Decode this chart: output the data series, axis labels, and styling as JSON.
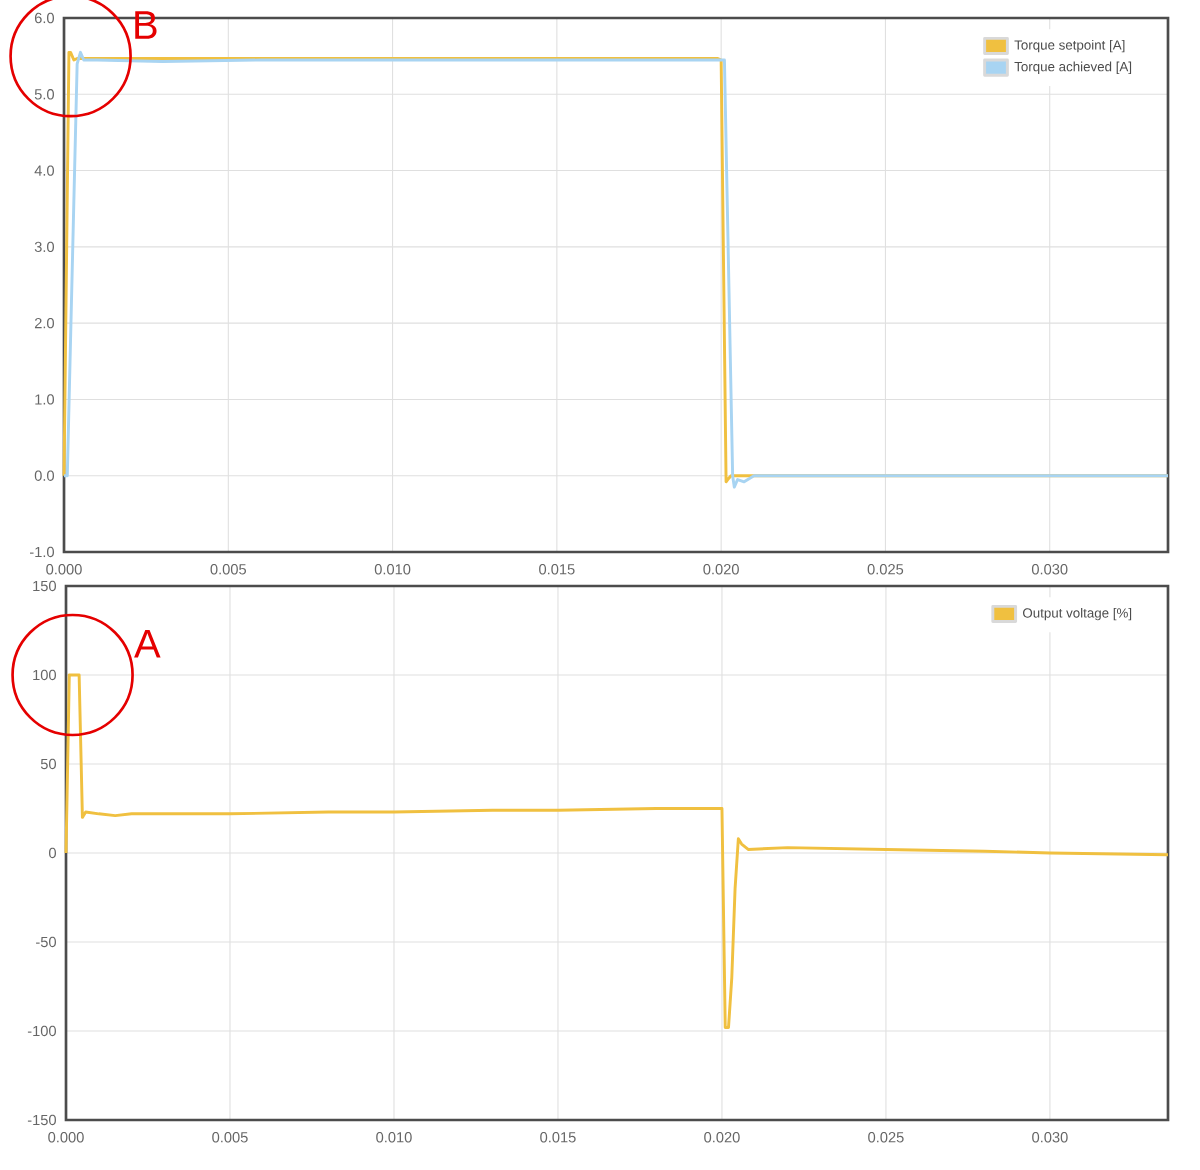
{
  "chart_data": [
    {
      "type": "line",
      "xlim": [
        0,
        0.0336
      ],
      "ylim": [
        -1,
        6
      ],
      "xticks": [
        {
          "value": 0,
          "label": "0.000"
        },
        {
          "value": 0.005,
          "label": "0.005"
        },
        {
          "value": 0.01,
          "label": "0.010"
        },
        {
          "value": 0.015,
          "label": "0.015"
        },
        {
          "value": 0.02,
          "label": "0.020"
        },
        {
          "value": 0.025,
          "label": "0.025"
        },
        {
          "value": 0.03,
          "label": "0.030"
        }
      ],
      "yticks": [
        {
          "value": -1,
          "label": "-1.0"
        },
        {
          "value": 0,
          "label": "0.0"
        },
        {
          "value": 1,
          "label": "1.0"
        },
        {
          "value": 2,
          "label": "2.0"
        },
        {
          "value": 3,
          "label": "3.0"
        },
        {
          "value": 4,
          "label": "4.0"
        },
        {
          "value": 5,
          "label": "5.0"
        },
        {
          "value": 6,
          "label": "6.0"
        }
      ],
      "grid": true,
      "legend": "top right",
      "marker": "none",
      "line_style": "solid",
      "annotations": [
        {
          "text": "B",
          "x": 0.0002,
          "y": 5.5
        }
      ],
      "series": [
        {
          "name": "Torque setpoint [A]",
          "color": "#f0c040",
          "x": [
            0,
            0.00015,
            0.0002,
            0.0003,
            0.0004,
            0.002,
            0.005,
            0.01,
            0.015,
            0.0199,
            0.02,
            0.02015,
            0.0202,
            0.0203,
            0.0336
          ],
          "values": [
            0,
            5.55,
            5.55,
            5.45,
            5.47,
            5.47,
            5.47,
            5.47,
            5.47,
            5.47,
            5.45,
            -0.08,
            -0.05,
            0,
            0
          ]
        },
        {
          "name": "Torque achieved [A]",
          "color": "#a8d4f2",
          "x": [
            0,
            0.0001,
            0.0004,
            0.0005,
            0.0006,
            0.001,
            0.003,
            0.006,
            0.01,
            0.015,
            0.0201,
            0.02035,
            0.0204,
            0.0205,
            0.0207,
            0.021,
            0.0336
          ],
          "values": [
            0,
            0,
            5.4,
            5.55,
            5.45,
            5.45,
            5.43,
            5.45,
            5.45,
            5.45,
            5.45,
            0,
            -0.15,
            -0.05,
            -0.08,
            0,
            0
          ]
        }
      ]
    },
    {
      "type": "line",
      "xlim": [
        0,
        0.0336
      ],
      "ylim": [
        -150,
        150
      ],
      "xticks": [
        {
          "value": 0,
          "label": "0.000"
        },
        {
          "value": 0.005,
          "label": "0.005"
        },
        {
          "value": 0.01,
          "label": "0.010"
        },
        {
          "value": 0.015,
          "label": "0.015"
        },
        {
          "value": 0.02,
          "label": "0.020"
        },
        {
          "value": 0.025,
          "label": "0.025"
        },
        {
          "value": 0.03,
          "label": "0.030"
        }
      ],
      "yticks": [
        -150,
        -100,
        -50,
        0,
        50,
        100,
        150
      ],
      "grid": true,
      "legend": "top right",
      "marker": "none",
      "line_style": "solid",
      "annotations": [
        {
          "text": "A",
          "x": 0.0002,
          "y": 100
        }
      ],
      "series": [
        {
          "name": "Output voltage [%]",
          "color": "#f0c040",
          "x": [
            0,
            0.0001,
            0.0004,
            0.0005,
            0.0006,
            0.001,
            0.0015,
            0.002,
            0.003,
            0.005,
            0.008,
            0.01,
            0.013,
            0.015,
            0.018,
            0.0199,
            0.02,
            0.0201,
            0.0202,
            0.0203,
            0.0204,
            0.0205,
            0.0206,
            0.0208,
            0.022,
            0.025,
            0.028,
            0.03,
            0.0336
          ],
          "values": [
            0,
            100,
            100,
            20,
            23,
            22,
            21,
            22,
            22,
            22,
            23,
            23,
            24,
            24,
            25,
            25,
            25,
            -98,
            -98,
            -70,
            -20,
            8,
            5,
            2,
            3,
            2,
            1,
            0,
            -1
          ]
        }
      ]
    }
  ]
}
